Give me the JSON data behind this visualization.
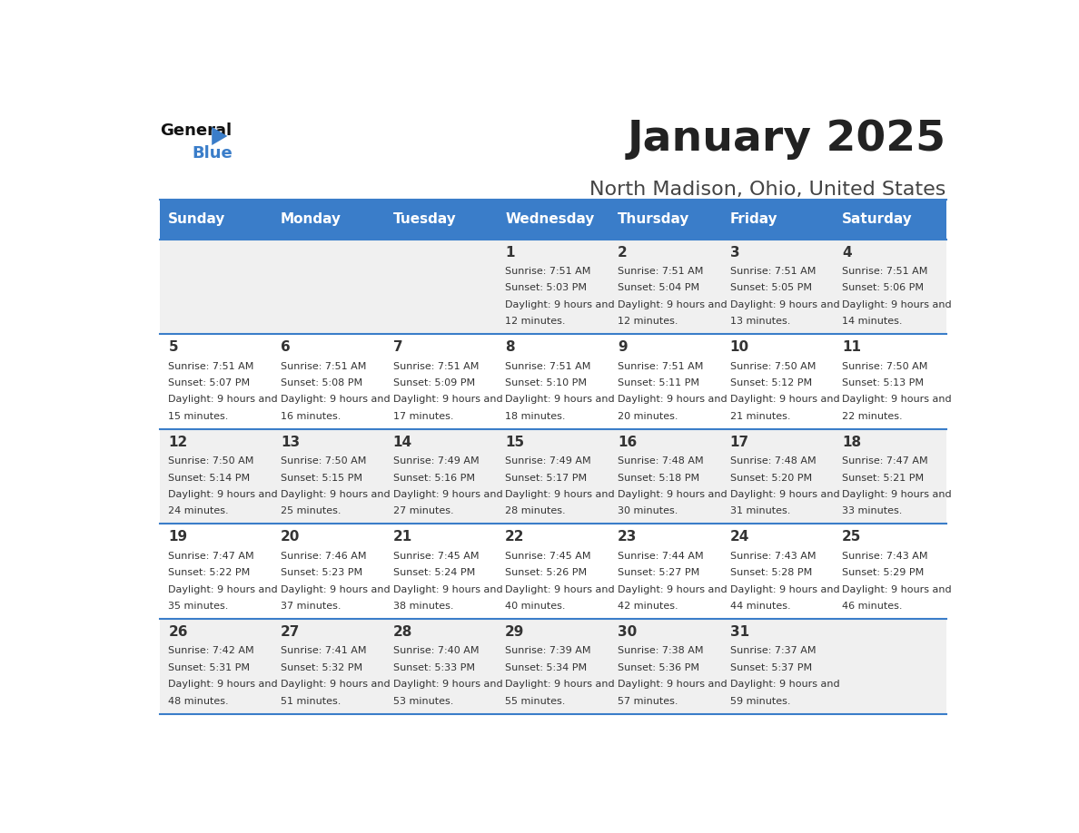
{
  "title": "January 2025",
  "subtitle": "North Madison, Ohio, United States",
  "header_bg_color": "#3a7dc9",
  "header_text_color": "#ffffff",
  "cell_bg_even": "#f0f0f0",
  "cell_bg_odd": "#ffffff",
  "border_color": "#3a7dc9",
  "text_color": "#333333",
  "days_of_week": [
    "Sunday",
    "Monday",
    "Tuesday",
    "Wednesday",
    "Thursday",
    "Friday",
    "Saturday"
  ],
  "calendar": [
    [
      {
        "day": "",
        "sunrise": "",
        "sunset": "",
        "daylight": ""
      },
      {
        "day": "",
        "sunrise": "",
        "sunset": "",
        "daylight": ""
      },
      {
        "day": "",
        "sunrise": "",
        "sunset": "",
        "daylight": ""
      },
      {
        "day": "1",
        "sunrise": "7:51 AM",
        "sunset": "5:03 PM",
        "daylight": "9 hours and 12 minutes."
      },
      {
        "day": "2",
        "sunrise": "7:51 AM",
        "sunset": "5:04 PM",
        "daylight": "9 hours and 12 minutes."
      },
      {
        "day": "3",
        "sunrise": "7:51 AM",
        "sunset": "5:05 PM",
        "daylight": "9 hours and 13 minutes."
      },
      {
        "day": "4",
        "sunrise": "7:51 AM",
        "sunset": "5:06 PM",
        "daylight": "9 hours and 14 minutes."
      }
    ],
    [
      {
        "day": "5",
        "sunrise": "7:51 AM",
        "sunset": "5:07 PM",
        "daylight": "9 hours and 15 minutes."
      },
      {
        "day": "6",
        "sunrise": "7:51 AM",
        "sunset": "5:08 PM",
        "daylight": "9 hours and 16 minutes."
      },
      {
        "day": "7",
        "sunrise": "7:51 AM",
        "sunset": "5:09 PM",
        "daylight": "9 hours and 17 minutes."
      },
      {
        "day": "8",
        "sunrise": "7:51 AM",
        "sunset": "5:10 PM",
        "daylight": "9 hours and 18 minutes."
      },
      {
        "day": "9",
        "sunrise": "7:51 AM",
        "sunset": "5:11 PM",
        "daylight": "9 hours and 20 minutes."
      },
      {
        "day": "10",
        "sunrise": "7:50 AM",
        "sunset": "5:12 PM",
        "daylight": "9 hours and 21 minutes."
      },
      {
        "day": "11",
        "sunrise": "7:50 AM",
        "sunset": "5:13 PM",
        "daylight": "9 hours and 22 minutes."
      }
    ],
    [
      {
        "day": "12",
        "sunrise": "7:50 AM",
        "sunset": "5:14 PM",
        "daylight": "9 hours and 24 minutes."
      },
      {
        "day": "13",
        "sunrise": "7:50 AM",
        "sunset": "5:15 PM",
        "daylight": "9 hours and 25 minutes."
      },
      {
        "day": "14",
        "sunrise": "7:49 AM",
        "sunset": "5:16 PM",
        "daylight": "9 hours and 27 minutes."
      },
      {
        "day": "15",
        "sunrise": "7:49 AM",
        "sunset": "5:17 PM",
        "daylight": "9 hours and 28 minutes."
      },
      {
        "day": "16",
        "sunrise": "7:48 AM",
        "sunset": "5:18 PM",
        "daylight": "9 hours and 30 minutes."
      },
      {
        "day": "17",
        "sunrise": "7:48 AM",
        "sunset": "5:20 PM",
        "daylight": "9 hours and 31 minutes."
      },
      {
        "day": "18",
        "sunrise": "7:47 AM",
        "sunset": "5:21 PM",
        "daylight": "9 hours and 33 minutes."
      }
    ],
    [
      {
        "day": "19",
        "sunrise": "7:47 AM",
        "sunset": "5:22 PM",
        "daylight": "9 hours and 35 minutes."
      },
      {
        "day": "20",
        "sunrise": "7:46 AM",
        "sunset": "5:23 PM",
        "daylight": "9 hours and 37 minutes."
      },
      {
        "day": "21",
        "sunrise": "7:45 AM",
        "sunset": "5:24 PM",
        "daylight": "9 hours and 38 minutes."
      },
      {
        "day": "22",
        "sunrise": "7:45 AM",
        "sunset": "5:26 PM",
        "daylight": "9 hours and 40 minutes."
      },
      {
        "day": "23",
        "sunrise": "7:44 AM",
        "sunset": "5:27 PM",
        "daylight": "9 hours and 42 minutes."
      },
      {
        "day": "24",
        "sunrise": "7:43 AM",
        "sunset": "5:28 PM",
        "daylight": "9 hours and 44 minutes."
      },
      {
        "day": "25",
        "sunrise": "7:43 AM",
        "sunset": "5:29 PM",
        "daylight": "9 hours and 46 minutes."
      }
    ],
    [
      {
        "day": "26",
        "sunrise": "7:42 AM",
        "sunset": "5:31 PM",
        "daylight": "9 hours and 48 minutes."
      },
      {
        "day": "27",
        "sunrise": "7:41 AM",
        "sunset": "5:32 PM",
        "daylight": "9 hours and 51 minutes."
      },
      {
        "day": "28",
        "sunrise": "7:40 AM",
        "sunset": "5:33 PM",
        "daylight": "9 hours and 53 minutes."
      },
      {
        "day": "29",
        "sunrise": "7:39 AM",
        "sunset": "5:34 PM",
        "daylight": "9 hours and 55 minutes."
      },
      {
        "day": "30",
        "sunrise": "7:38 AM",
        "sunset": "5:36 PM",
        "daylight": "9 hours and 57 minutes."
      },
      {
        "day": "31",
        "sunrise": "7:37 AM",
        "sunset": "5:37 PM",
        "daylight": "9 hours and 59 minutes."
      },
      {
        "day": "",
        "sunrise": "",
        "sunset": "",
        "daylight": ""
      }
    ]
  ]
}
